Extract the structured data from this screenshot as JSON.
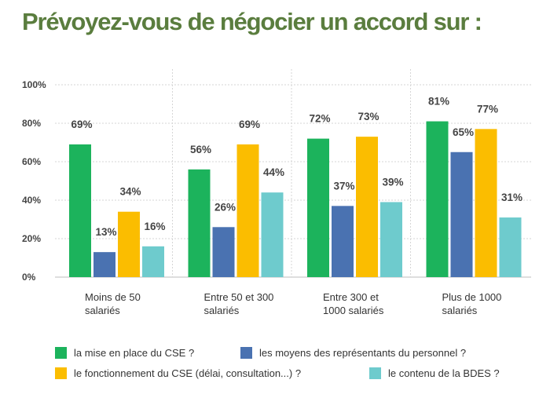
{
  "page": {
    "title": "Prévoyez-vous de négocier un accord sur :",
    "title_color": "#5a7d3e"
  },
  "chart_data": {
    "type": "bar",
    "title": "Prévoyez-vous de négocier un accord sur :",
    "xlabel": "",
    "ylabel": "",
    "ylim": [
      0,
      100
    ],
    "ytick_labels": [
      "0%",
      "20%",
      "40%",
      "60%",
      "80%",
      "100%"
    ],
    "ytick_values": [
      0,
      20,
      40,
      60,
      80,
      100
    ],
    "grid": true,
    "legend_position": "bottom",
    "categories": [
      [
        "Moins de 50",
        "salariés"
      ],
      [
        "Entre 50 et 300",
        "salariés"
      ],
      [
        "Entre 300 et",
        "1000 salariés"
      ],
      [
        "Plus de 1000",
        "salariés"
      ]
    ],
    "series": [
      {
        "name": "la mise en place du CSE ?",
        "color": "#1cb35c",
        "values": [
          69,
          56,
          72,
          81
        ]
      },
      {
        "name": "les moyens des représentants du personnel ?",
        "color": "#4a72b1",
        "values": [
          13,
          26,
          37,
          65
        ]
      },
      {
        "name": "le fonctionnement du CSE (délai, consultation...) ?",
        "color": "#fbbd00",
        "values": [
          34,
          69,
          73,
          77
        ]
      },
      {
        "name": "le contenu de la BDES ?",
        "color": "#6ecbcd",
        "values": [
          16,
          44,
          39,
          31
        ]
      }
    ],
    "data_labels": [
      [
        "69%",
        "56%",
        "72%",
        "81%"
      ],
      [
        "13%",
        "26%",
        "37%",
        "65%"
      ],
      [
        "34%",
        "69%",
        "73%",
        "77%"
      ],
      [
        "16%",
        "44%",
        "39%",
        "31%"
      ]
    ],
    "legend_order": [
      0,
      1,
      2,
      3
    ]
  }
}
